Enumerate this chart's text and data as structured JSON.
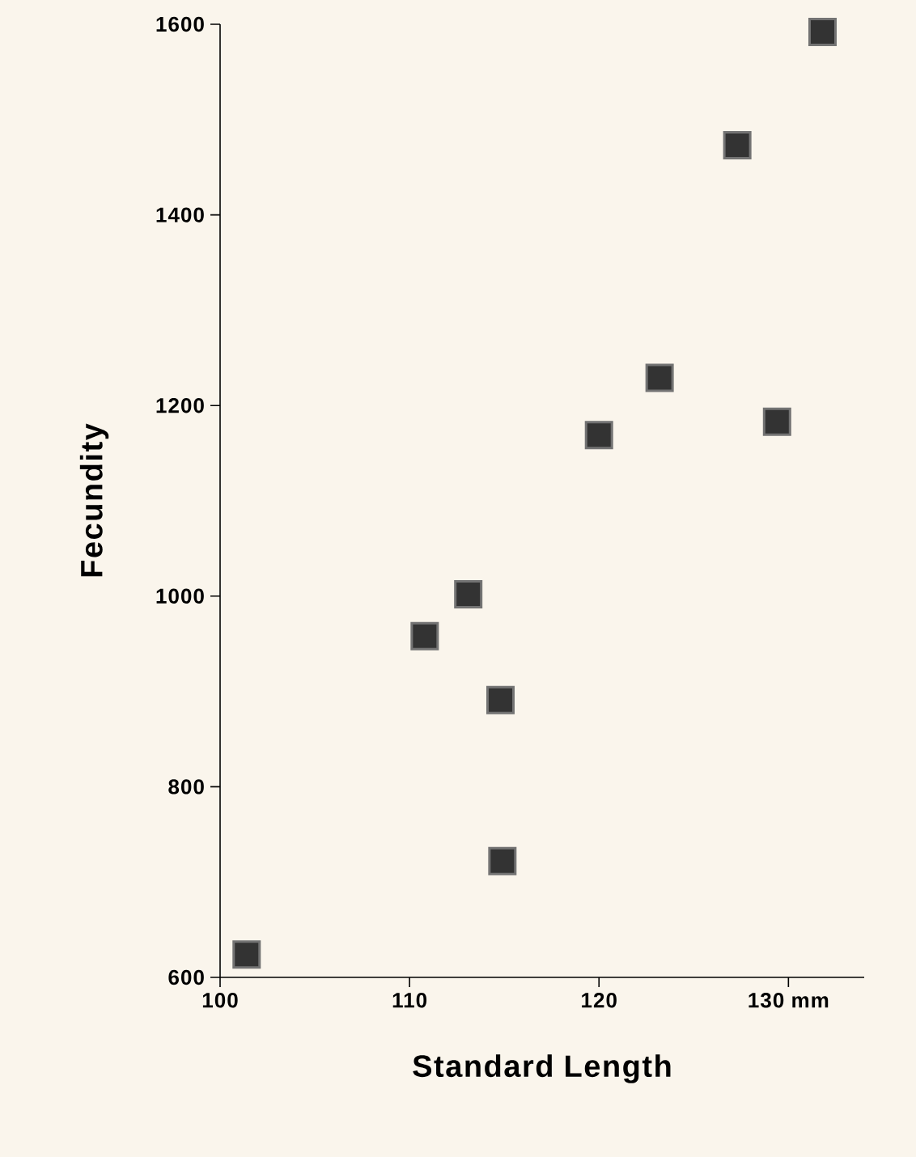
{
  "chart_data": {
    "type": "scatter",
    "xlabel": "Standard Length",
    "ylabel": "Fecundity",
    "x": [
      101.4,
      110.8,
      113.1,
      114.8,
      114.9,
      120.0,
      123.2,
      127.3,
      129.4,
      131.8
    ],
    "values": [
      624,
      958,
      1002,
      891,
      722,
      1169,
      1229,
      1473,
      1183,
      1592
    ],
    "color": "#333333",
    "marker": "square",
    "xlim": [
      100,
      134
    ],
    "ylim": [
      600,
      1600
    ],
    "xticks": [
      100,
      110,
      120,
      {
        "value": 130,
        "label": "130 mm"
      }
    ],
    "yticks": [
      600,
      800,
      1000,
      1200,
      1400,
      1600
    ],
    "grid": false
  }
}
